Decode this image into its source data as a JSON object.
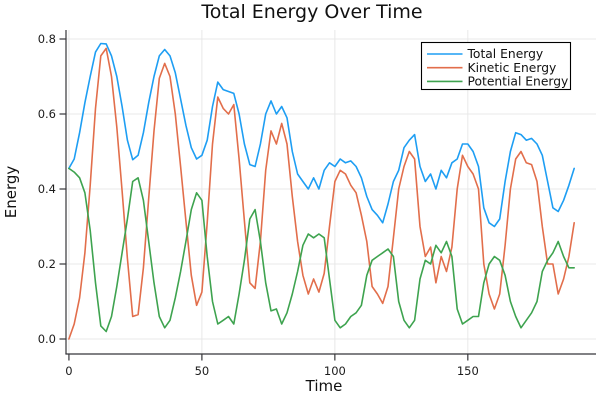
{
  "figure": {
    "title": "Total Energy Over Time"
  },
  "chart_data": {
    "type": "line",
    "title": "Total Energy Over Time",
    "xlabel": "Time",
    "ylabel": "Energy",
    "xlim": [
      -1.1,
      198.2
    ],
    "ylim": [
      -0.04,
      0.824
    ],
    "grid": true,
    "legend_position": "top-right",
    "legend_border_color": "#000000",
    "grid_color": "#e8e8e8",
    "spine_color": "#36363a",
    "xticks": {
      "values": [
        0,
        50,
        100,
        150
      ],
      "labels": [
        "0",
        "50",
        "100",
        "150"
      ]
    },
    "yticks": {
      "values": [
        0.0,
        0.2,
        0.4,
        0.6,
        0.8
      ],
      "labels": [
        "0.0",
        "0.2",
        "0.4",
        "0.6",
        "0.8"
      ]
    },
    "x": [
      0,
      2,
      4,
      6,
      8,
      10,
      12,
      14,
      16,
      18,
      20,
      22,
      24,
      26,
      28,
      30,
      32,
      34,
      36,
      38,
      40,
      42,
      44,
      46,
      48,
      50,
      52,
      54,
      56,
      58,
      60,
      62,
      64,
      66,
      68,
      70,
      72,
      74,
      76,
      78,
      80,
      82,
      84,
      86,
      88,
      90,
      92,
      94,
      96,
      98,
      100,
      102,
      104,
      106,
      108,
      110,
      112,
      114,
      116,
      118,
      120,
      122,
      124,
      126,
      128,
      130,
      132,
      134,
      136,
      138,
      140,
      142,
      144,
      146,
      148,
      150,
      152,
      154,
      156,
      158,
      160,
      162,
      164,
      166,
      168,
      170,
      172,
      174,
      176,
      178,
      180,
      182,
      184,
      186,
      188,
      190
    ],
    "series": [
      {
        "name": "Total Energy",
        "color": "#1e9ef3",
        "values": [
          0.455,
          0.48,
          0.55,
          0.63,
          0.7,
          0.765,
          0.788,
          0.787,
          0.755,
          0.7,
          0.62,
          0.53,
          0.478,
          0.49,
          0.55,
          0.63,
          0.7,
          0.755,
          0.772,
          0.755,
          0.71,
          0.64,
          0.57,
          0.51,
          0.48,
          0.49,
          0.53,
          0.62,
          0.685,
          0.665,
          0.66,
          0.655,
          0.6,
          0.52,
          0.465,
          0.46,
          0.52,
          0.6,
          0.635,
          0.6,
          0.62,
          0.59,
          0.5,
          0.44,
          0.42,
          0.4,
          0.43,
          0.4,
          0.45,
          0.47,
          0.46,
          0.48,
          0.47,
          0.475,
          0.46,
          0.43,
          0.38,
          0.345,
          0.33,
          0.31,
          0.36,
          0.42,
          0.45,
          0.51,
          0.53,
          0.545,
          0.46,
          0.42,
          0.44,
          0.4,
          0.45,
          0.43,
          0.47,
          0.48,
          0.52,
          0.52,
          0.5,
          0.46,
          0.35,
          0.31,
          0.3,
          0.32,
          0.42,
          0.5,
          0.55,
          0.545,
          0.53,
          0.535,
          0.52,
          0.49,
          0.42,
          0.35,
          0.34,
          0.37,
          0.41,
          0.455
        ]
      },
      {
        "name": "Kinetic Energy",
        "color": "#e26e4b",
        "values": [
          0.0,
          0.04,
          0.11,
          0.23,
          0.41,
          0.615,
          0.755,
          0.775,
          0.7,
          0.565,
          0.395,
          0.215,
          0.06,
          0.065,
          0.19,
          0.375,
          0.555,
          0.695,
          0.735,
          0.7,
          0.6,
          0.46,
          0.315,
          0.17,
          0.09,
          0.125,
          0.31,
          0.52,
          0.645,
          0.615,
          0.6,
          0.625,
          0.48,
          0.315,
          0.15,
          0.135,
          0.26,
          0.45,
          0.555,
          0.52,
          0.575,
          0.52,
          0.38,
          0.26,
          0.17,
          0.12,
          0.16,
          0.125,
          0.175,
          0.3,
          0.42,
          0.45,
          0.44,
          0.41,
          0.39,
          0.33,
          0.26,
          0.14,
          0.12,
          0.095,
          0.14,
          0.27,
          0.4,
          0.46,
          0.5,
          0.48,
          0.3,
          0.22,
          0.245,
          0.15,
          0.22,
          0.18,
          0.245,
          0.4,
          0.49,
          0.46,
          0.44,
          0.4,
          0.2,
          0.12,
          0.08,
          0.12,
          0.25,
          0.4,
          0.48,
          0.5,
          0.47,
          0.465,
          0.42,
          0.3,
          0.2,
          0.2,
          0.12,
          0.16,
          0.22,
          0.31
        ]
      },
      {
        "name": "Potential Energy",
        "color": "#3ea34f",
        "values": [
          0.455,
          0.445,
          0.43,
          0.39,
          0.29,
          0.15,
          0.035,
          0.02,
          0.06,
          0.14,
          0.23,
          0.32,
          0.42,
          0.43,
          0.37,
          0.26,
          0.15,
          0.06,
          0.03,
          0.05,
          0.11,
          0.18,
          0.26,
          0.345,
          0.39,
          0.37,
          0.22,
          0.1,
          0.04,
          0.05,
          0.06,
          0.04,
          0.12,
          0.21,
          0.32,
          0.345,
          0.26,
          0.15,
          0.075,
          0.08,
          0.04,
          0.07,
          0.12,
          0.18,
          0.25,
          0.28,
          0.27,
          0.28,
          0.27,
          0.16,
          0.05,
          0.03,
          0.04,
          0.06,
          0.07,
          0.09,
          0.17,
          0.21,
          0.22,
          0.23,
          0.24,
          0.22,
          0.1,
          0.05,
          0.03,
          0.05,
          0.16,
          0.21,
          0.2,
          0.25,
          0.23,
          0.26,
          0.22,
          0.08,
          0.04,
          0.05,
          0.06,
          0.06,
          0.15,
          0.2,
          0.22,
          0.21,
          0.17,
          0.1,
          0.06,
          0.03,
          0.05,
          0.07,
          0.1,
          0.18,
          0.21,
          0.23,
          0.26,
          0.22,
          0.19,
          0.19
        ]
      }
    ]
  }
}
